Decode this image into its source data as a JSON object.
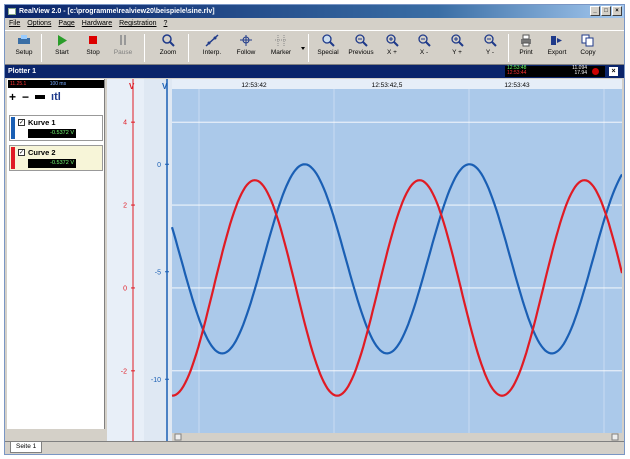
{
  "window": {
    "title": "RealView 2.0 - [c:\\programme\\realview20\\beispiele\\sine.rlv]",
    "controls": [
      "_",
      "□",
      "×"
    ]
  },
  "menu": [
    "File",
    "Options",
    "Page",
    "Hardware",
    "Registration",
    "?"
  ],
  "toolbar": {
    "setup": "Setup",
    "start": "Start",
    "stop": "Stop",
    "pause": "Pause",
    "zoom": "Zoom",
    "interp": "Interp.",
    "follow": "Follow",
    "marker": "Marker",
    "special": "Special",
    "previous": "Previous",
    "xplus": "X +",
    "xminus": "X -",
    "yplus": "Y +",
    "yminus": "Y -",
    "print": "Print",
    "export": "Export",
    "copy": "Copy"
  },
  "plotter": {
    "title": "Plotter 1",
    "readout": {
      "green": "12:53:48",
      "red": "12:53:44",
      "right1": "11.094",
      "right2": "17.94"
    },
    "close": "×"
  },
  "left_panel": {
    "top_left": "11.25.1",
    "top_right": "100 ms",
    "tool_plus": "+",
    "tool_minus": "−",
    "tool_bars": "ıtl",
    "curves": [
      {
        "name": "Kurve 1",
        "value": "-0.5372 V",
        "color": "#1a5fb4",
        "checked": "✓"
      },
      {
        "name": "Curve 2",
        "value": "-0.5372 V",
        "color": "#e01b24",
        "checked": "✓"
      }
    ]
  },
  "axes": {
    "unit_left": "V",
    "unit_right": "V",
    "red_ticks": [
      "4",
      "2",
      "0",
      "-2"
    ],
    "blue_ticks": [
      "0",
      "-5",
      "-10"
    ],
    "time_labels": [
      "12:53:42",
      "12:53:42,5",
      "12:53:43"
    ]
  },
  "chart_data": {
    "type": "line",
    "x_unit": "s",
    "xlim": [
      0,
      1.3
    ],
    "series": [
      {
        "name": "Kurve 1",
        "color": "#1a5fb4",
        "amplitude": 2.0,
        "offset": -2.0,
        "frequency_hz": 2.1,
        "phase": 2.8,
        "axis": "blue"
      },
      {
        "name": "Curve 2",
        "color": "#e01b24",
        "amplitude": 2.6,
        "offset": 0.0,
        "frequency_hz": 2.1,
        "phase": 4.7,
        "axis": "red"
      }
    ],
    "red_axis_range": [
      -3.5,
      4.8
    ],
    "blue_axis_range": [
      -12.5,
      3.5
    ]
  },
  "status": {
    "tab": "Seite 1"
  },
  "colors": {
    "plot_bg": "#abc9ea",
    "grid": "#ffffff",
    "blue": "#1a5fb4",
    "red": "#e01b24",
    "title_bar": "#0a246a"
  }
}
